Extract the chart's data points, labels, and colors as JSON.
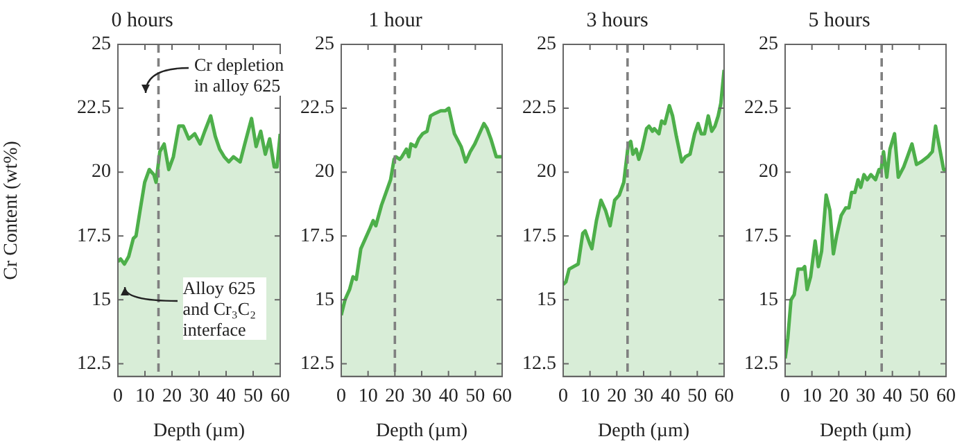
{
  "chart_data": [
    {
      "type": "area",
      "title": "0 hours",
      "xlabel": "Depth (µm)",
      "ylabel": "Cr Content (wt%)",
      "xlim": [
        0,
        60
      ],
      "xticks": [
        0,
        10,
        20,
        30,
        40,
        50,
        60
      ],
      "ylim": [
        12,
        25
      ],
      "yticks": [
        12.5,
        15,
        17.5,
        20,
        22.5,
        25
      ],
      "x": [
        0,
        1,
        2.4,
        4,
        5.7,
        6.7,
        8.2,
        9.9,
        11.6,
        13.3,
        14.1,
        15.5,
        17.1,
        18.8,
        20.5,
        22.5,
        24.2,
        26.2,
        28.4,
        30.4,
        32.1,
        34.3,
        36,
        37.6,
        39.3,
        41,
        42.7,
        45.2,
        46.9,
        49.4,
        51.1,
        52.8,
        54.5,
        56.1,
        57.8,
        58.8,
        60
      ],
      "series": [
        {
          "color": "#4daf4a",
          "values": [
            16.5,
            16.6,
            16.4,
            16.7,
            17.4,
            17.5,
            18.5,
            19.6,
            20.1,
            19.9,
            19.6,
            20.8,
            21.1,
            20.1,
            20.6,
            21.8,
            21.8,
            21.3,
            21.5,
            21.1,
            21.6,
            22.2,
            21.4,
            20.9,
            20.6,
            20.4,
            20.6,
            20.4,
            21.1,
            22.1,
            21,
            21.6,
            20.7,
            21.3,
            20.2,
            20.2,
            21.5
          ]
        }
      ],
      "ref_lines": [
        {
          "axis": "x",
          "value": 15,
          "color": "#808080",
          "line_style": "dashed"
        }
      ],
      "annotations": [
        "Cr depletion in alloy 625",
        "Alloy 625 and Cr₃C₂ interface"
      ]
    },
    {
      "type": "area",
      "title": "1 hour",
      "xlabel": "Depth (µm)",
      "xlim": [
        0,
        60
      ],
      "xticks": [
        0,
        10,
        20,
        30,
        40,
        50,
        60
      ],
      "ylim": [
        12,
        25
      ],
      "yticks": [
        12.5,
        15,
        17.5,
        20,
        22.5,
        25
      ],
      "x": [
        0,
        1.4,
        3.1,
        4.4,
        5.6,
        7.3,
        9,
        10.7,
        11.9,
        12.9,
        15,
        16.7,
        18.4,
        19.7,
        20.4,
        21.8,
        22.6,
        24.3,
        25.2,
        26,
        27.7,
        28.9,
        30.3,
        32,
        33.3,
        35,
        37.1,
        38.8,
        40.1,
        42.2,
        44.7,
        46.4,
        48.1,
        49.8,
        51.5,
        53.2,
        54.4,
        55.8,
        57.8,
        60
      ],
      "series": [
        {
          "color": "#4daf4a",
          "values": [
            14.4,
            15,
            15.4,
            15.9,
            15.8,
            17,
            17.4,
            17.8,
            18.1,
            17.9,
            18.7,
            19.2,
            19.7,
            20.5,
            20.6,
            20.5,
            20.6,
            20.9,
            20.6,
            21.1,
            21,
            21.3,
            21.5,
            21.6,
            22.2,
            22.3,
            22.4,
            22.4,
            22.5,
            21.5,
            21,
            20.4,
            20.8,
            21.1,
            21.5,
            21.9,
            21.7,
            21.3,
            20.6,
            20.6
          ]
        }
      ],
      "ref_lines": [
        {
          "axis": "x",
          "value": 20,
          "color": "#808080",
          "line_style": "dashed"
        }
      ]
    },
    {
      "type": "area",
      "title": "3 hours",
      "xlabel": "Depth (µm)",
      "xlim": [
        0,
        60
      ],
      "xticks": [
        0,
        10,
        20,
        30,
        40,
        50,
        60
      ],
      "ylim": [
        12,
        25
      ],
      "yticks": [
        12.5,
        15,
        17.5,
        20,
        22.5,
        25
      ],
      "x": [
        0,
        1,
        2.2,
        3.9,
        5.6,
        7.3,
        8.2,
        9.9,
        10.7,
        12.4,
        14.1,
        15.8,
        17.5,
        19.2,
        20.9,
        22.6,
        24.3,
        25.2,
        26,
        27.2,
        28.2,
        29.4,
        31.1,
        32,
        33.3,
        34,
        35.7,
        36.7,
        37.9,
        39.6,
        40.8,
        42.2,
        44.2,
        45.6,
        47.3,
        49,
        50.3,
        51.5,
        52.7,
        54.1,
        55.4,
        56.6,
        57.8,
        58.8,
        60
      ],
      "series": [
        {
          "color": "#4daf4a",
          "values": [
            15.6,
            15.7,
            16.2,
            16.3,
            16.4,
            17.6,
            17.7,
            17.2,
            17,
            18.1,
            18.9,
            18.5,
            17.9,
            18.9,
            19.1,
            19.6,
            21.1,
            21.2,
            20.7,
            20.9,
            20.5,
            20.9,
            21.7,
            21.8,
            21.6,
            21.7,
            21.5,
            22,
            21.9,
            22.6,
            22.2,
            21.4,
            20.4,
            20.6,
            20.7,
            21.5,
            21.9,
            21.5,
            21.5,
            22.2,
            21.6,
            21.8,
            22.2,
            22.7,
            24
          ]
        }
      ],
      "ref_lines": [
        {
          "axis": "x",
          "value": 24,
          "color": "#808080",
          "line_style": "dashed"
        }
      ]
    },
    {
      "type": "area",
      "title": "5 hours",
      "xlabel": "Depth (µm)",
      "xlim": [
        0,
        60
      ],
      "xticks": [
        0,
        10,
        20,
        30,
        40,
        50,
        60
      ],
      "ylim": [
        12,
        25
      ],
      "yticks": [
        12.5,
        15,
        17.5,
        20,
        22.5,
        25
      ],
      "x": [
        0,
        1,
        2.2,
        3.4,
        4.8,
        6.5,
        7.3,
        8.2,
        9.5,
        11.2,
        12.4,
        13.6,
        15.3,
        16.7,
        18,
        19.2,
        20.9,
        22.6,
        23.8,
        24.8,
        26,
        27.2,
        28.2,
        29.4,
        30.6,
        32,
        33.7,
        35,
        35.7,
        36.7,
        37.9,
        39.1,
        40.8,
        42.2,
        44.2,
        45.6,
        47.3,
        49,
        50.7,
        53.2,
        54.9,
        56.1,
        57.5,
        59.1,
        60
      ],
      "series": [
        {
          "color": "#4daf4a",
          "values": [
            12.7,
            13.5,
            15,
            15.2,
            16.2,
            16.2,
            16.3,
            15.4,
            15.9,
            17.3,
            16.3,
            16.9,
            19.1,
            18.5,
            16.8,
            17.5,
            18.3,
            18.6,
            18.6,
            19.2,
            19.2,
            19.7,
            19.4,
            19.9,
            19.7,
            19.9,
            19.7,
            20.1,
            20,
            20.8,
            19.8,
            20.9,
            21.5,
            19.8,
            20.2,
            20.6,
            21.1,
            20.3,
            20.4,
            20.6,
            20.8,
            21.8,
            21,
            20.1,
            20.1
          ]
        }
      ],
      "ref_lines": [
        {
          "axis": "x",
          "value": 36,
          "color": "#808080",
          "line_style": "dashed"
        }
      ]
    }
  ]
}
